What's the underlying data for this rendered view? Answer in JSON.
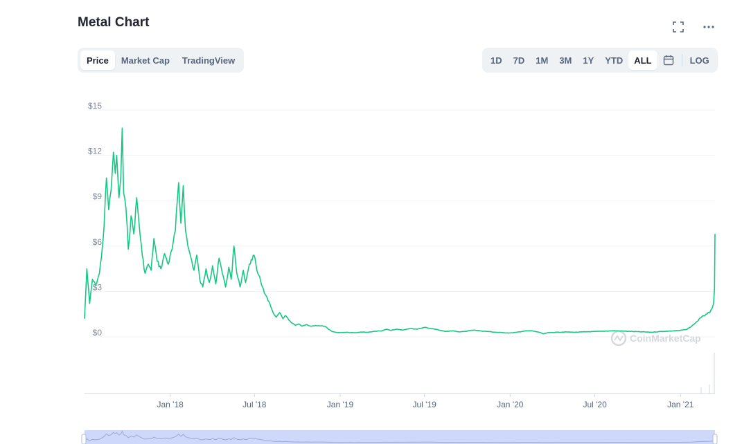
{
  "header": {
    "title": "Metal Chart"
  },
  "view_tabs": [
    {
      "label": "Price",
      "active": true
    },
    {
      "label": "Market Cap",
      "active": false
    },
    {
      "label": "TradingView",
      "active": false
    }
  ],
  "range_tabs": [
    {
      "label": "1D",
      "active": false
    },
    {
      "label": "7D",
      "active": false
    },
    {
      "label": "1M",
      "active": false
    },
    {
      "label": "3M",
      "active": false
    },
    {
      "label": "1Y",
      "active": false
    },
    {
      "label": "YTD",
      "active": false
    },
    {
      "label": "ALL",
      "active": true
    }
  ],
  "scale_toggle": {
    "label": "LOG"
  },
  "icons": {
    "fullscreen": "fullscreen-icon",
    "more": "more-icon",
    "calendar": "calendar-icon"
  },
  "watermark": {
    "text": "CoinMarketCap"
  },
  "colors": {
    "line": "#16c784",
    "grid": "#eff2f5",
    "navigator": "#cdd8fb"
  },
  "chart_data": {
    "type": "line",
    "title": "Metal Chart",
    "ylabel": "",
    "xlabel": "",
    "ylim": [
      0,
      15
    ],
    "y_ticks": [
      "$0",
      "$3",
      "$6",
      "$9",
      "$12",
      "$15"
    ],
    "y_tick_values": [
      0,
      3,
      6,
      9,
      12,
      15
    ],
    "x_ticks": [
      "Jan '18",
      "Jul '18",
      "Jan '19",
      "Jul '19",
      "Jan '20",
      "Jul '20",
      "Jan '21"
    ],
    "x_tick_dates": [
      "2018-01-01",
      "2018-07-01",
      "2019-01-01",
      "2019-07-01",
      "2020-01-01",
      "2020-07-01",
      "2021-01-01"
    ],
    "grid": true,
    "series": [
      {
        "values": [
          [
            "2017-07-01",
            1.2
          ],
          [
            "2017-07-06",
            4.5
          ],
          [
            "2017-07-12",
            2.2
          ],
          [
            "2017-07-18",
            3.8
          ],
          [
            "2017-07-25",
            3.4
          ],
          [
            "2017-08-02",
            4.2
          ],
          [
            "2017-08-08",
            5.8
          ],
          [
            "2017-08-12",
            7.3
          ],
          [
            "2017-08-17",
            10.5
          ],
          [
            "2017-08-22",
            8.4
          ],
          [
            "2017-08-27",
            9.7
          ],
          [
            "2017-09-01",
            12.2
          ],
          [
            "2017-09-05",
            10.8
          ],
          [
            "2017-09-08",
            12.0
          ],
          [
            "2017-09-13",
            9.2
          ],
          [
            "2017-09-17",
            10.6
          ],
          [
            "2017-09-20",
            13.8
          ],
          [
            "2017-09-23",
            9.5
          ],
          [
            "2017-09-28",
            8.5
          ],
          [
            "2017-10-03",
            5.8
          ],
          [
            "2017-10-09",
            8.0
          ],
          [
            "2017-10-15",
            6.8
          ],
          [
            "2017-10-21",
            9.2
          ],
          [
            "2017-10-27",
            7.2
          ],
          [
            "2017-11-02",
            5.4
          ],
          [
            "2017-11-08",
            4.2
          ],
          [
            "2017-11-15",
            4.8
          ],
          [
            "2017-11-21",
            4.4
          ],
          [
            "2017-11-27",
            6.5
          ],
          [
            "2017-12-04",
            5.0
          ],
          [
            "2017-12-12",
            4.5
          ],
          [
            "2017-12-20",
            5.5
          ],
          [
            "2017-12-28",
            4.8
          ],
          [
            "2018-01-05",
            5.8
          ],
          [
            "2018-01-12",
            7.0
          ],
          [
            "2018-01-19",
            10.2
          ],
          [
            "2018-01-24",
            7.5
          ],
          [
            "2018-01-29",
            10.0
          ],
          [
            "2018-02-03",
            7.0
          ],
          [
            "2018-02-08",
            6.0
          ],
          [
            "2018-02-14",
            5.3
          ],
          [
            "2018-02-21",
            4.4
          ],
          [
            "2018-02-27",
            5.4
          ],
          [
            "2018-03-06",
            3.7
          ],
          [
            "2018-03-12",
            3.3
          ],
          [
            "2018-03-19",
            4.5
          ],
          [
            "2018-03-26",
            3.6
          ],
          [
            "2018-04-02",
            4.7
          ],
          [
            "2018-04-09",
            3.5
          ],
          [
            "2018-04-16",
            5.2
          ],
          [
            "2018-04-23",
            4.2
          ],
          [
            "2018-04-30",
            3.3
          ],
          [
            "2018-05-07",
            4.6
          ],
          [
            "2018-05-12",
            3.8
          ],
          [
            "2018-05-18",
            6.0
          ],
          [
            "2018-05-24",
            4.2
          ],
          [
            "2018-05-31",
            3.3
          ],
          [
            "2018-06-07",
            4.4
          ],
          [
            "2018-06-12",
            3.6
          ],
          [
            "2018-06-18",
            4.5
          ],
          [
            "2018-06-24",
            5.1
          ],
          [
            "2018-06-30",
            5.4
          ],
          [
            "2018-07-06",
            4.4
          ],
          [
            "2018-07-12",
            4.0
          ],
          [
            "2018-07-18",
            3.3
          ],
          [
            "2018-07-24",
            2.8
          ],
          [
            "2018-07-30",
            2.4
          ],
          [
            "2018-08-05",
            2.0
          ],
          [
            "2018-08-10",
            1.6
          ],
          [
            "2018-08-17",
            1.3
          ],
          [
            "2018-08-24",
            1.6
          ],
          [
            "2018-08-31",
            1.2
          ],
          [
            "2018-09-06",
            1.4
          ],
          [
            "2018-09-13",
            1.1
          ],
          [
            "2018-09-20",
            0.9
          ],
          [
            "2018-09-27",
            0.75
          ],
          [
            "2018-10-04",
            0.85
          ],
          [
            "2018-10-11",
            0.7
          ],
          [
            "2018-10-20",
            0.8
          ],
          [
            "2018-10-30",
            0.7
          ],
          [
            "2018-11-09",
            0.75
          ],
          [
            "2018-11-19",
            0.72
          ],
          [
            "2018-11-29",
            0.7
          ],
          [
            "2018-12-07",
            0.5
          ],
          [
            "2018-12-15",
            0.35
          ],
          [
            "2018-12-22",
            0.3
          ],
          [
            "2018-12-31",
            0.28
          ],
          [
            "2019-01-15",
            0.3
          ],
          [
            "2019-02-01",
            0.27
          ],
          [
            "2019-02-15",
            0.32
          ],
          [
            "2019-03-01",
            0.3
          ],
          [
            "2019-03-15",
            0.36
          ],
          [
            "2019-04-01",
            0.4
          ],
          [
            "2019-04-10",
            0.5
          ],
          [
            "2019-04-20",
            0.42
          ],
          [
            "2019-05-01",
            0.5
          ],
          [
            "2019-05-15",
            0.45
          ],
          [
            "2019-06-01",
            0.55
          ],
          [
            "2019-06-15",
            0.5
          ],
          [
            "2019-07-01",
            0.62
          ],
          [
            "2019-07-15",
            0.55
          ],
          [
            "2019-08-01",
            0.45
          ],
          [
            "2019-08-15",
            0.35
          ],
          [
            "2019-09-01",
            0.4
          ],
          [
            "2019-09-15",
            0.32
          ],
          [
            "2019-10-01",
            0.38
          ],
          [
            "2019-10-15",
            0.45
          ],
          [
            "2019-11-01",
            0.38
          ],
          [
            "2019-11-15",
            0.35
          ],
          [
            "2019-12-01",
            0.3
          ],
          [
            "2019-12-15",
            0.28
          ],
          [
            "2020-01-01",
            0.25
          ],
          [
            "2020-01-15",
            0.3
          ],
          [
            "2020-02-01",
            0.38
          ],
          [
            "2020-02-15",
            0.4
          ],
          [
            "2020-03-01",
            0.32
          ],
          [
            "2020-03-12",
            0.2
          ],
          [
            "2020-03-25",
            0.28
          ],
          [
            "2020-04-10",
            0.3
          ],
          [
            "2020-05-01",
            0.32
          ],
          [
            "2020-05-20",
            0.3
          ],
          [
            "2020-06-10",
            0.33
          ],
          [
            "2020-07-01",
            0.35
          ],
          [
            "2020-07-20",
            0.37
          ],
          [
            "2020-08-10",
            0.4
          ],
          [
            "2020-08-30",
            0.38
          ],
          [
            "2020-09-20",
            0.35
          ],
          [
            "2020-10-10",
            0.33
          ],
          [
            "2020-10-30",
            0.3
          ],
          [
            "2020-11-20",
            0.35
          ],
          [
            "2020-12-10",
            0.38
          ],
          [
            "2020-12-31",
            0.42
          ],
          [
            "2021-01-15",
            0.5
          ],
          [
            "2021-01-25",
            0.7
          ],
          [
            "2021-02-05",
            1.0
          ],
          [
            "2021-02-15",
            1.3
          ],
          [
            "2021-02-25",
            1.5
          ],
          [
            "2021-03-05",
            1.6
          ],
          [
            "2021-03-10",
            1.9
          ],
          [
            "2021-03-13",
            2.2
          ],
          [
            "2021-03-15",
            3.2
          ],
          [
            "2021-03-16",
            6.8
          ]
        ]
      }
    ]
  }
}
